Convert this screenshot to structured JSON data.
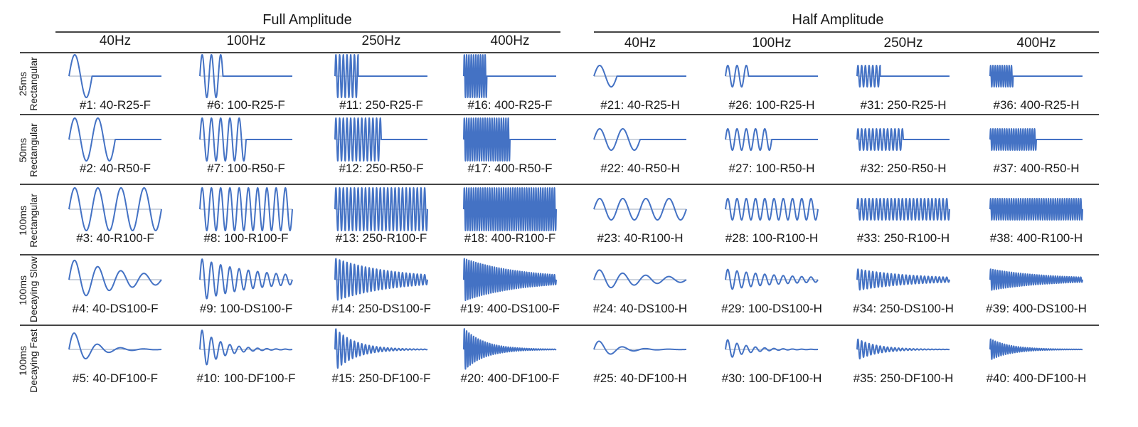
{
  "groups": [
    {
      "title": "Full Amplitude",
      "frequencies": [
        "40Hz",
        "100Hz",
        "250Hz",
        "400Hz"
      ]
    },
    {
      "title": "Half Amplitude",
      "frequencies": [
        "40Hz",
        "100Hz",
        "250Hz",
        "400Hz"
      ]
    }
  ],
  "rows": [
    {
      "duration": "25ms",
      "envelope": "Rectangular"
    },
    {
      "duration": "50ms",
      "envelope": "Rectangular"
    },
    {
      "duration": "100ms",
      "envelope": "Rectangular"
    },
    {
      "duration": "100ms",
      "envelope": "Decaying Slow"
    },
    {
      "duration": "100ms",
      "envelope": "Decaying Fast"
    }
  ],
  "captions": [
    [
      "#1: 40-R25-F",
      "#6: 100-R25-F",
      "#11: 250-R25-F",
      "#16: 400-R25-F",
      "#21: 40-R25-H",
      "#26: 100-R25-H",
      "#31: 250-R25-H",
      "#36: 400-R25-H"
    ],
    [
      "#2: 40-R50-F",
      "#7: 100-R50-F",
      "#12: 250-R50-F",
      "#17: 400-R50-F",
      "#22: 40-R50-H",
      "#27: 100-R50-H",
      "#32: 250-R50-H",
      "#37: 400-R50-H"
    ],
    [
      "#3: 40-R100-F",
      "#8: 100-R100-F",
      "#13: 250-R100-F",
      "#18: 400-R100-F",
      "#23: 40-R100-H",
      "#28: 100-R100-H",
      "#33: 250-R100-H",
      "#38: 400-R100-H"
    ],
    [
      "#4: 40-DS100-F",
      "#9: 100-DS100-F",
      "#14: 250-DS100-F",
      "#19: 400-DS100-F",
      "#24: 40-DS100-H",
      "#29: 100-DS100-H",
      "#34: 250-DS100-H",
      "#39: 400-DS100-H"
    ],
    [
      "#5: 40-DF100-F",
      "#10: 100-DF100-F",
      "#15: 250-DF100-F",
      "#20: 400-DF100-F",
      "#25: 40-DF100-H",
      "#30: 100-DF100-H",
      "#35: 250-DF100-H",
      "#40: 400-DF100-H"
    ]
  ],
  "waveform_color": "#4472c4",
  "frequency_values_hz": [
    40,
    100,
    250,
    400
  ],
  "amplitude_values": [
    1.0,
    0.5
  ],
  "row_durations_ms": [
    25,
    50,
    100,
    100,
    100
  ],
  "row_envelopes": [
    "rectangular",
    "rectangular",
    "rectangular",
    "decaying-slow",
    "decaying-fast"
  ]
}
